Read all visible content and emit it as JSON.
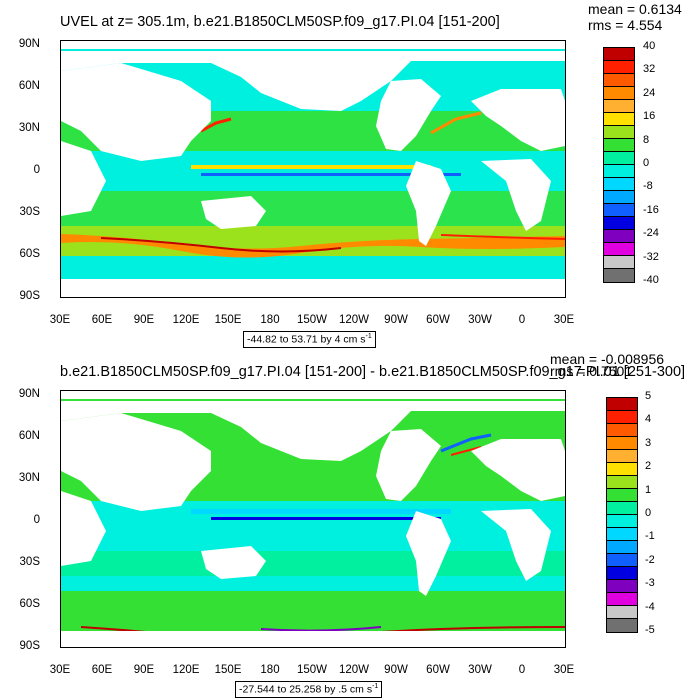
{
  "panel1": {
    "title": "UVEL at z= 305.1m, b.e21.B1850CLM50SP.f09_g17.PI.04 [151-200]",
    "mean": "mean = 0.6134",
    "rms": "rms = 4.554",
    "range": "-44.82 to 53.71 by 4 cm s",
    "range_sup": "-1",
    "colorbar_labels": [
      "40",
      "32",
      "24",
      "16",
      "8",
      "0",
      "-8",
      "-16",
      "-24",
      "-32",
      "-40"
    ]
  },
  "panel2": {
    "title": "b.e21.B1850CLM50SP.f09_g17.PI.04 [151-200] - b.e21.B1850CLM50SP.f09_g17.PI.01 [251-300]",
    "mean": "mean = -0.008956",
    "rms": "rms = 0.7501",
    "range": "-27.544 to 25.258 by .5 cm s",
    "range_sup": "-1",
    "colorbar_labels": [
      "5",
      "4",
      "3",
      "2",
      "1",
      "0",
      "-1",
      "-2",
      "-3",
      "-4",
      "-5"
    ]
  },
  "lat_labels": [
    "90N",
    "60N",
    "30N",
    "0",
    "30S",
    "60S",
    "90S"
  ],
  "lon_labels": [
    "30E",
    "60E",
    "90E",
    "120E",
    "150E",
    "180",
    "150W",
    "120W",
    "90W",
    "60W",
    "30W",
    "0",
    "30E"
  ],
  "palette": [
    "#c00000",
    "#ff2000",
    "#ff5a00",
    "#ff8a00",
    "#ffb030",
    "#ffe000",
    "#9be21d",
    "#33e033",
    "#00f0a0",
    "#00f0e0",
    "#00d8ff",
    "#00a8ff",
    "#1060ff",
    "#0000e0",
    "#8000c0",
    "#e000e0",
    "#c8c8c8",
    "#707070"
  ]
}
